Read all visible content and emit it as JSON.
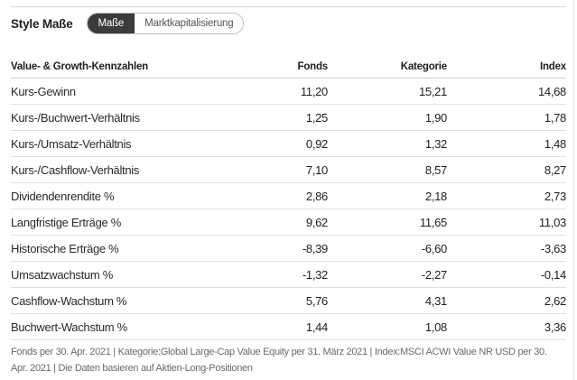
{
  "section": {
    "title": "Style Maße",
    "toggle": {
      "options": [
        "Maße",
        "Marktkapitalisierung"
      ],
      "selected": "Maße"
    }
  },
  "table": {
    "headers": [
      "Value- & Growth-Kennzahlen",
      "Fonds",
      "Kategorie",
      "Index"
    ],
    "rows": [
      [
        "Kurs-Gewinn",
        "11,20",
        "15,21",
        "14,68"
      ],
      [
        "Kurs-/Buchwert-Verhältnis",
        "1,25",
        "1,90",
        "1,78"
      ],
      [
        "Kurs-/Umsatz-Verhältnis",
        "0,92",
        "1,32",
        "1,48"
      ],
      [
        "Kurs-/Cashflow-Verhältnis",
        "7,10",
        "8,57",
        "8,27"
      ],
      [
        "Dividendenrendite %",
        "2,86",
        "2,18",
        "2,73"
      ],
      [
        "Langfristige Erträge %",
        "9,62",
        "11,65",
        "11,03"
      ],
      [
        "Historische Erträge %",
        "-8,39",
        "-6,60",
        "-3,63"
      ],
      [
        "Umsatzwachstum %",
        "-1,32",
        "-2,27",
        "-0,14"
      ],
      [
        "Cashflow-Wachstum %",
        "5,76",
        "4,31",
        "2,62"
      ],
      [
        "Buchwert-Wachstum %",
        "1,44",
        "1,08",
        "3,36"
      ]
    ]
  },
  "footnote": "Fonds per 30. Apr. 2021 | Kategorie:Global Large-Cap Value Equity per 31. März 2021 | Index:MSCI ACWI Value NR USD per 30. Apr. 2021 | Die Daten basieren auf Aktien-Long-Positionen"
}
